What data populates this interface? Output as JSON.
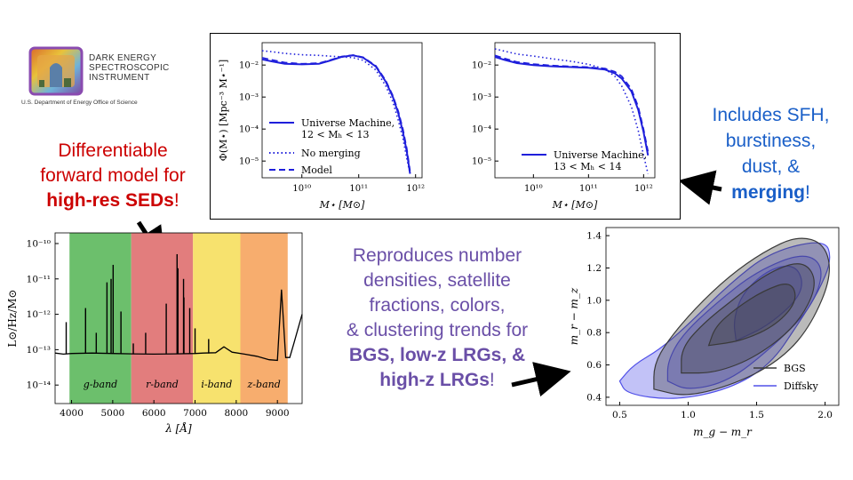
{
  "logo": {
    "lines": [
      "DARK ENERGY",
      "SPECTROSCOPIC",
      "INSTRUMENT"
    ],
    "subtitle": "U.S. Department of Energy Office of Science"
  },
  "annotations": {
    "left_lines": [
      "Differentiable",
      "forward model for"
    ],
    "left_bold": "high-res SEDs",
    "left_end": "!",
    "right_lines": [
      "Includes SFH,",
      "burstiness,",
      "dust, &"
    ],
    "right_bold": "merging",
    "right_end": "!",
    "mid_lines": [
      "Reproduces number",
      "densities, satellite",
      "fractions, colors,",
      "& clustering trends for"
    ],
    "mid_bold1": "BGS, low-z LRGs, &",
    "mid_bold2": "high-z LRGs",
    "mid_end": "!"
  },
  "colors": {
    "red_text": "#cc0000",
    "blue_text": "#1a5fc8",
    "purple_text": "#6a4fa7",
    "model_blue": "#1f1fdb"
  },
  "chart_data": [
    {
      "type": "line",
      "panel": "smf-left",
      "ylabel": "Φ(M⋆) [Mpc⁻³ M⋆⁻¹]",
      "xlabel": "M⋆ [M⊙]",
      "xscale": "log",
      "yscale": "log",
      "xlim": [
        2000000000.0,
        1300000000000.0
      ],
      "ylim": [
        3e-06,
        0.05
      ],
      "xticks": [
        "10¹⁰",
        "10¹¹",
        "10¹²"
      ],
      "yticks": [
        "10⁻⁵",
        "10⁻⁴",
        "10⁻³",
        "10⁻²"
      ],
      "legend": {
        "placement": "lower-left",
        "entries": [
          {
            "style": "solid",
            "label1": "Universe Machine,",
            "label2": "12 < Mₕ < 13"
          },
          {
            "style": "dotted",
            "label1": "No merging",
            "label2": ""
          },
          {
            "style": "dashed",
            "label1": "Model",
            "label2": ""
          }
        ]
      },
      "x": [
        2000000000.0,
        3000000000.0,
        5000000000.0,
        10000000000.0,
        20000000000.0,
        30000000000.0,
        50000000000.0,
        80000000000.0,
        120000000000.0,
        200000000000.0,
        300000000000.0,
        400000000000.0,
        500000000000.0,
        600000000000.0,
        700000000000.0,
        800000000000.0
      ],
      "series": [
        {
          "style": "solid",
          "values": [
            0.015,
            0.013,
            0.011,
            0.0105,
            0.011,
            0.0135,
            0.018,
            0.02,
            0.017,
            0.009,
            0.003,
            0.001,
            0.0003,
            8e-05,
            2e-05,
            4e-06
          ]
        },
        {
          "style": "dotted",
          "values": [
            0.028,
            0.026,
            0.023,
            0.021,
            0.02,
            0.019,
            0.018,
            0.017,
            0.014,
            0.007,
            0.0022,
            0.0007,
            0.00018,
            5e-05,
            1.2e-05,
            4e-06
          ]
        },
        {
          "style": "dashed",
          "values": [
            0.017,
            0.0145,
            0.012,
            0.011,
            0.0115,
            0.014,
            0.0185,
            0.0205,
            0.0175,
            0.0095,
            0.0033,
            0.0011,
            0.00035,
            0.0001,
            2.5e-05,
            5e-06
          ]
        }
      ]
    },
    {
      "type": "line",
      "panel": "smf-right",
      "xlabel": "M⋆ [M⊙]",
      "xscale": "log",
      "yscale": "log",
      "xlim": [
        2000000000.0,
        1600000000000.0
      ],
      "ylim": [
        3e-06,
        0.05
      ],
      "xticks": [
        "10¹⁰",
        "10¹¹",
        "10¹²"
      ],
      "yticks": [
        "10⁻⁵",
        "10⁻⁴",
        "10⁻³",
        "10⁻²"
      ],
      "legend": {
        "placement": "lower-center",
        "entries": [
          {
            "style": "solid",
            "label1": "Universe Machine,",
            "label2": "13 < Mₕ < 14"
          }
        ]
      },
      "x": [
        2000000000.0,
        3000000000.0,
        5000000000.0,
        10000000000.0,
        20000000000.0,
        50000000000.0,
        100000000000.0,
        200000000000.0,
        300000000000.0,
        400000000000.0,
        600000000000.0,
        800000000000.0,
        1000000000000.0,
        1200000000000.0
      ],
      "series": [
        {
          "style": "solid",
          "values": [
            0.018,
            0.0145,
            0.0115,
            0.01,
            0.0092,
            0.0086,
            0.0082,
            0.0072,
            0.0055,
            0.0038,
            0.0015,
            0.0004,
            8e-05,
            1.5e-05
          ]
        },
        {
          "style": "dotted",
          "values": [
            0.032,
            0.027,
            0.022,
            0.019,
            0.016,
            0.013,
            0.0105,
            0.0075,
            0.0045,
            0.0022,
            0.0005,
            9e-05,
            1.5e-05,
            4e-06
          ]
        },
        {
          "style": "dashed",
          "values": [
            0.02,
            0.016,
            0.0125,
            0.0108,
            0.0098,
            0.009,
            0.0086,
            0.0078,
            0.0062,
            0.0045,
            0.0018,
            0.0005,
            0.0001,
            2e-05
          ]
        }
      ]
    },
    {
      "type": "line",
      "panel": "sed",
      "ylabel": "L⊙/Hz/M⊙",
      "xlabel": "λ [Å]",
      "yscale": "log",
      "xlim": [
        3600,
        9600
      ],
      "ylim": [
        3e-15,
        2e-10
      ],
      "xticks": [
        4000,
        5000,
        6000,
        7000,
        8000,
        9000
      ],
      "yticks": [
        "10⁻¹⁴",
        "10⁻¹³",
        "10⁻¹²",
        "10⁻¹¹",
        "10⁻¹⁰"
      ],
      "bands": [
        {
          "label": "g-band",
          "min": 3950,
          "max": 5450,
          "color": "#6cbf6c"
        },
        {
          "label": "r-band",
          "min": 5450,
          "max": 6950,
          "color": "#e27d7d"
        },
        {
          "label": "i-band",
          "min": 6950,
          "max": 8100,
          "color": "#f7e26e"
        },
        {
          "label": "z-band",
          "min": 8100,
          "max": 9250,
          "color": "#f7ad6e"
        }
      ],
      "continuum": {
        "x": [
          3600,
          3800,
          4000,
          4500,
          5000,
          5500,
          6000,
          6500,
          7000,
          7200,
          7500,
          7700,
          7900,
          8200,
          8500,
          8800,
          9000,
          9100,
          9200,
          9300,
          9400,
          9600
        ],
        "y": [
          8e-14,
          7.5e-14,
          7.8e-14,
          8e-14,
          7.8e-14,
          7.6e-14,
          7.5e-14,
          7.6e-14,
          7.8e-14,
          8e-14,
          8.2e-14,
          1.2e-13,
          8.5e-14,
          7.5e-14,
          6.5e-14,
          5.2e-14,
          5e-14,
          5e-12,
          6e-14,
          6e-14,
          1.5e-13,
          1e-12
        ]
      },
      "lines": [
        {
          "x": 3870,
          "peak": 6e-13
        },
        {
          "x": 4340,
          "peak": 1.5e-12
        },
        {
          "x": 4600,
          "peak": 3e-13
        },
        {
          "x": 4860,
          "peak": 8e-12
        },
        {
          "x": 4960,
          "peak": 1e-11
        },
        {
          "x": 5010,
          "peak": 2.5e-11
        },
        {
          "x": 5200,
          "peak": 1.2e-12
        },
        {
          "x": 5500,
          "peak": 1.5e-13
        },
        {
          "x": 5800,
          "peak": 3e-13
        },
        {
          "x": 6300,
          "peak": 2e-12
        },
        {
          "x": 6563,
          "peak": 5e-11
        },
        {
          "x": 6584,
          "peak": 2e-11
        },
        {
          "x": 6720,
          "peak": 1e-11
        },
        {
          "x": 6730,
          "peak": 3e-12
        },
        {
          "x": 6870,
          "peak": 1.5e-12
        },
        {
          "x": 7000,
          "peak": 4e-13
        },
        {
          "x": 7330,
          "peak": 2e-13
        }
      ]
    },
    {
      "type": "contour",
      "panel": "color-color",
      "xlabel": "m_g − m_r",
      "ylabel": "m_r − m_z",
      "xlim": [
        0.4,
        2.1
      ],
      "ylim": [
        0.35,
        1.45
      ],
      "xticks": [
        0.5,
        1.0,
        1.5,
        2.0
      ],
      "yticks": [
        0.4,
        0.6,
        0.8,
        1.0,
        1.2,
        1.4
      ],
      "legend": {
        "placement": "lower-right",
        "entries": [
          {
            "label": "BGS",
            "color": "#3a3a3a"
          },
          {
            "label": "Diffsky",
            "color": "#5050e8"
          }
        ]
      },
      "series": [
        {
          "name": "Diffsky",
          "color": "#5050e8",
          "levels": [
            {
              "points": [
                [
                  0.5,
                  0.5
                ],
                [
                  0.55,
                  0.42
                ],
                [
                  0.9,
                  0.38
                ],
                [
                  1.3,
                  0.45
                ],
                [
                  1.6,
                  0.6
                ],
                [
                  1.8,
                  0.85
                ],
                [
                  1.95,
                  1.05
                ],
                [
                  2.05,
                  1.25
                ],
                [
                  2.0,
                  1.38
                ],
                [
                  1.6,
                  1.3
                ],
                [
                  1.3,
                  1.1
                ],
                [
                  1.0,
                  0.85
                ],
                [
                  0.8,
                  0.7
                ],
                [
                  0.6,
                  0.6
                ]
              ]
            },
            {
              "points": [
                [
                  0.85,
                  0.5
                ],
                [
                  1.0,
                  0.44
                ],
                [
                  1.3,
                  0.5
                ],
                [
                  1.6,
                  0.7
                ],
                [
                  1.9,
                  0.95
                ],
                [
                  2.0,
                  1.2
                ],
                [
                  1.85,
                  1.3
                ],
                [
                  1.5,
                  1.18
                ],
                [
                  1.2,
                  0.98
                ],
                [
                  0.95,
                  0.78
                ],
                [
                  0.85,
                  0.62
                ]
              ]
            },
            {
              "points": [
                [
                  1.35,
                  0.75
                ],
                [
                  1.6,
                  0.85
                ],
                [
                  1.85,
                  1.05
                ],
                [
                  1.8,
                  1.22
                ],
                [
                  1.6,
                  1.2
                ],
                [
                  1.4,
                  1.05
                ],
                [
                  1.33,
                  0.88
                ]
              ]
            }
          ]
        },
        {
          "name": "BGS",
          "color": "#3a3a3a",
          "levels": [
            {
              "points": [
                [
                  0.75,
                  0.45
                ],
                [
                  1.0,
                  0.4
                ],
                [
                  1.4,
                  0.5
                ],
                [
                  1.7,
                  0.65
                ],
                [
                  1.9,
                  0.85
                ],
                [
                  2.05,
                  1.15
                ],
                [
                  2.0,
                  1.35
                ],
                [
                  1.8,
                  1.4
                ],
                [
                  1.55,
                  1.3
                ],
                [
                  1.3,
                  1.15
                ],
                [
                  1.05,
                  0.95
                ],
                [
                  0.85,
                  0.75
                ],
                [
                  0.75,
                  0.6
                ]
              ]
            },
            {
              "points": [
                [
                  0.95,
                  0.55
                ],
                [
                  1.2,
                  0.55
                ],
                [
                  1.5,
                  0.65
                ],
                [
                  1.8,
                  0.85
                ],
                [
                  1.95,
                  1.1
                ],
                [
                  1.85,
                  1.25
                ],
                [
                  1.6,
                  1.18
                ],
                [
                  1.35,
                  1.02
                ],
                [
                  1.1,
                  0.85
                ],
                [
                  0.95,
                  0.7
                ]
              ]
            },
            {
              "points": [
                [
                  1.15,
                  0.72
                ],
                [
                  1.4,
                  0.75
                ],
                [
                  1.65,
                  0.85
                ],
                [
                  1.8,
                  1.0
                ],
                [
                  1.75,
                  1.12
                ],
                [
                  1.55,
                  1.06
                ],
                [
                  1.35,
                  0.95
                ],
                [
                  1.2,
                  0.84
                ]
              ]
            }
          ]
        }
      ]
    }
  ]
}
